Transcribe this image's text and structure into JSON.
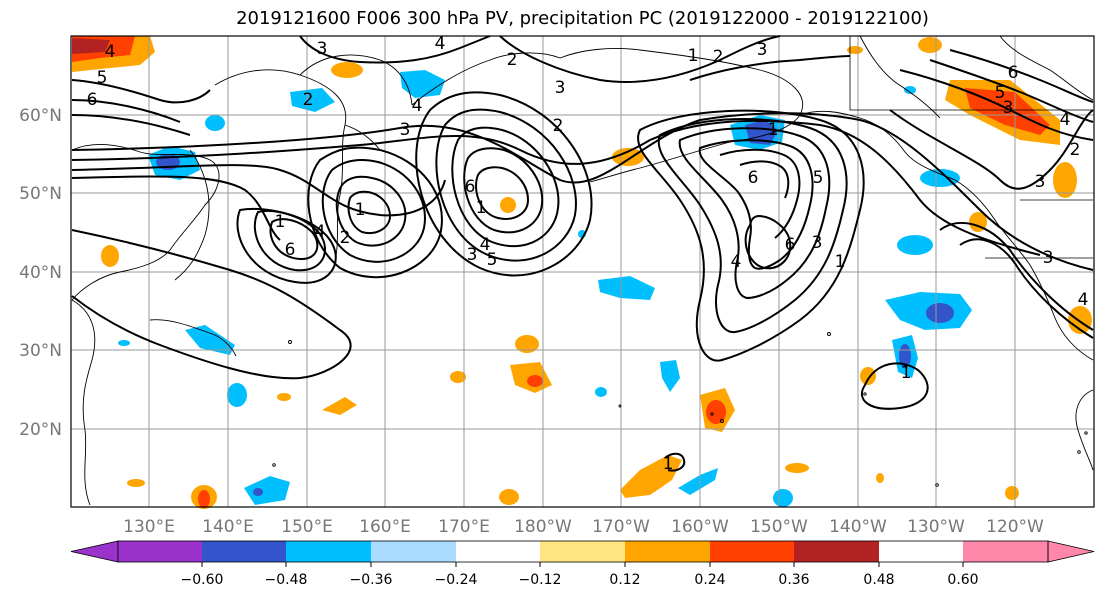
{
  "title": "2019121600 F006 300 hPa PV, precipitation PC (2019122000 - 2019122100)",
  "map": {
    "lat_labels": [
      "60°N",
      "50°N",
      "40°N",
      "30°N",
      "20°N"
    ],
    "lon_labels": [
      "130°E",
      "140°E",
      "150°E",
      "160°E",
      "170°E",
      "180°W",
      "170°W",
      "160°W",
      "150°W",
      "140°W",
      "130°W",
      "120°W"
    ],
    "contour_labels": [
      "1",
      "2",
      "3",
      "4",
      "5",
      "6"
    ]
  },
  "colorbar": {
    "colors": [
      "#9933cc",
      "#000080",
      "#3355cc",
      "#00bfff",
      "#aadcff",
      "#ffffff",
      "#ffe680",
      "#ffa500",
      "#ff4000",
      "#b22222",
      "#ff88aa"
    ],
    "tick_labels": [
      "-0.60",
      "-0.48",
      "-0.36",
      "-0.24",
      "-0.12",
      "0.12",
      "0.24",
      "0.36",
      "0.48",
      "0.60"
    ]
  }
}
